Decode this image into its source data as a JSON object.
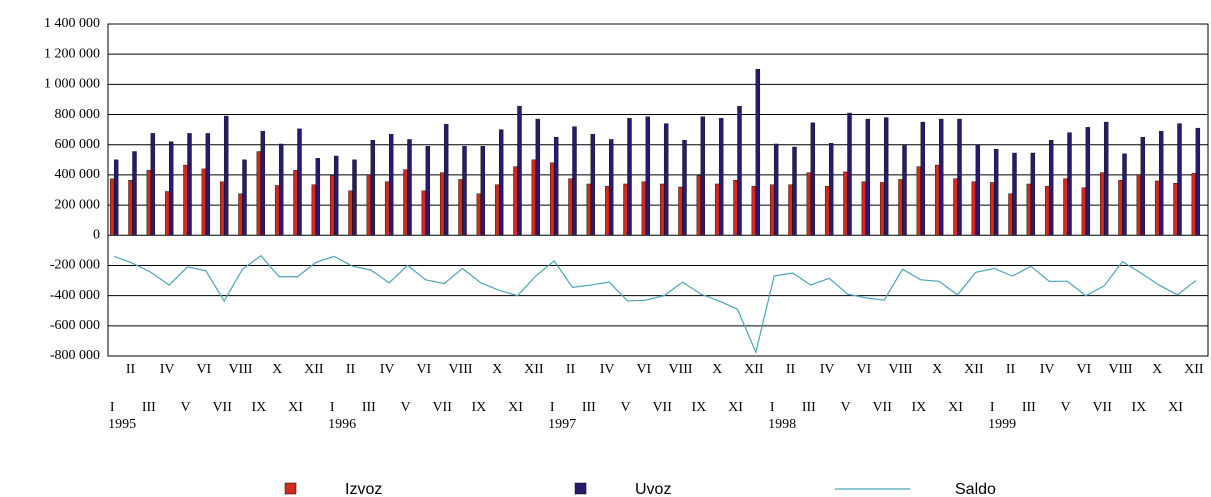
{
  "chart_data": {
    "type": "bar-line",
    "categories": [
      "I",
      "II",
      "III",
      "IV",
      "V",
      "VI",
      "VII",
      "VIII",
      "IX",
      "X",
      "XI",
      "XII",
      "I",
      "II",
      "III",
      "IV",
      "V",
      "VI",
      "VII",
      "VIII",
      "IX",
      "X",
      "XI",
      "XII",
      "I",
      "II",
      "III",
      "IV",
      "V",
      "VI",
      "VII",
      "VIII",
      "IX",
      "X",
      "XI",
      "XII",
      "I",
      "II",
      "III",
      "IV",
      "V",
      "VI",
      "VII",
      "VIII",
      "IX",
      "X",
      "XI",
      "XII",
      "I",
      "II",
      "III",
      "IV",
      "V",
      "VI",
      "VII",
      "VIII",
      "IX",
      "X",
      "XI",
      "XII"
    ],
    "year_labels": [
      "1995",
      "1996",
      "1997",
      "1998",
      "1999"
    ],
    "series": [
      {
        "name": "Izvoz",
        "color": "#d32a1e",
        "kind": "bar",
        "values": [
          375000,
          365000,
          430000,
          290000,
          465000,
          440000,
          355000,
          275000,
          555000,
          330000,
          430000,
          335000,
          395000,
          295000,
          400000,
          355000,
          435000,
          295000,
          415000,
          370000,
          275000,
          335000,
          455000,
          500000,
          480000,
          375000,
          340000,
          325000,
          340000,
          355000,
          340000,
          320000,
          395000,
          340000,
          365000,
          325000,
          335000,
          335000,
          415000,
          325000,
          420000,
          355000,
          350000,
          370000,
          455000,
          465000,
          375000,
          355000,
          350000,
          275000,
          340000,
          325000,
          375000,
          315000,
          415000,
          365000,
          400000,
          360000,
          345000,
          410000
        ]
      },
      {
        "name": "Uvoz",
        "color": "#2a1a6e",
        "kind": "bar",
        "values": [
          500000,
          555000,
          675000,
          620000,
          675000,
          675000,
          790000,
          500000,
          690000,
          605000,
          705000,
          510000,
          525000,
          500000,
          630000,
          670000,
          635000,
          590000,
          735000,
          590000,
          590000,
          700000,
          855000,
          770000,
          650000,
          720000,
          670000,
          635000,
          775000,
          785000,
          740000,
          630000,
          785000,
          775000,
          855000,
          1100000,
          605000,
          585000,
          745000,
          610000,
          810000,
          770000,
          780000,
          595000,
          750000,
          770000,
          770000,
          600000,
          570000,
          545000,
          545000,
          630000,
          680000,
          715000,
          750000,
          540000,
          650000,
          690000,
          740000,
          710000
        ]
      },
      {
        "name": "Saldo",
        "color": "#4aa3b8",
        "kind": "line",
        "values": [
          -140000,
          -185000,
          -245000,
          -330000,
          -210000,
          -235000,
          -435000,
          -225000,
          -135000,
          -275000,
          -275000,
          -180000,
          -140000,
          -205000,
          -230000,
          -315000,
          -200000,
          -295000,
          -320000,
          -220000,
          -315000,
          -365000,
          -400000,
          -270000,
          -170000,
          -345000,
          -330000,
          -310000,
          -435000,
          -430000,
          -400000,
          -310000,
          -390000,
          -435000,
          -490000,
          -775000,
          -270000,
          -250000,
          -330000,
          -285000,
          -390000,
          -415000,
          -430000,
          -225000,
          -295000,
          -305000,
          -395000,
          -245000,
          -220000,
          -270000,
          -205000,
          -305000,
          -305000,
          -400000,
          -335000,
          -175000,
          -250000,
          -330000,
          -395000,
          -300000
        ]
      }
    ],
    "ylim": [
      -800000,
      1400000
    ],
    "yticks": [
      {
        "value": -800000,
        "label": "-800 000"
      },
      {
        "value": -600000,
        "label": "-600 000"
      },
      {
        "value": -400000,
        "label": "-400 000"
      },
      {
        "value": -200000,
        "label": "-200 000"
      },
      0,
      {
        "value": 200000,
        "label": "200 000"
      },
      {
        "value": 400000,
        "label": "400 000"
      },
      {
        "value": 600000,
        "label": "600 000"
      },
      {
        "value": 800000,
        "label": "800 000"
      },
      {
        "value": 1000000,
        "label": "1 000 000"
      },
      {
        "value": 1200000,
        "label": "1 200 000"
      },
      {
        "value": 1400000,
        "label": "1 400 000"
      }
    ],
    "grid": true,
    "legend": "bottom"
  }
}
